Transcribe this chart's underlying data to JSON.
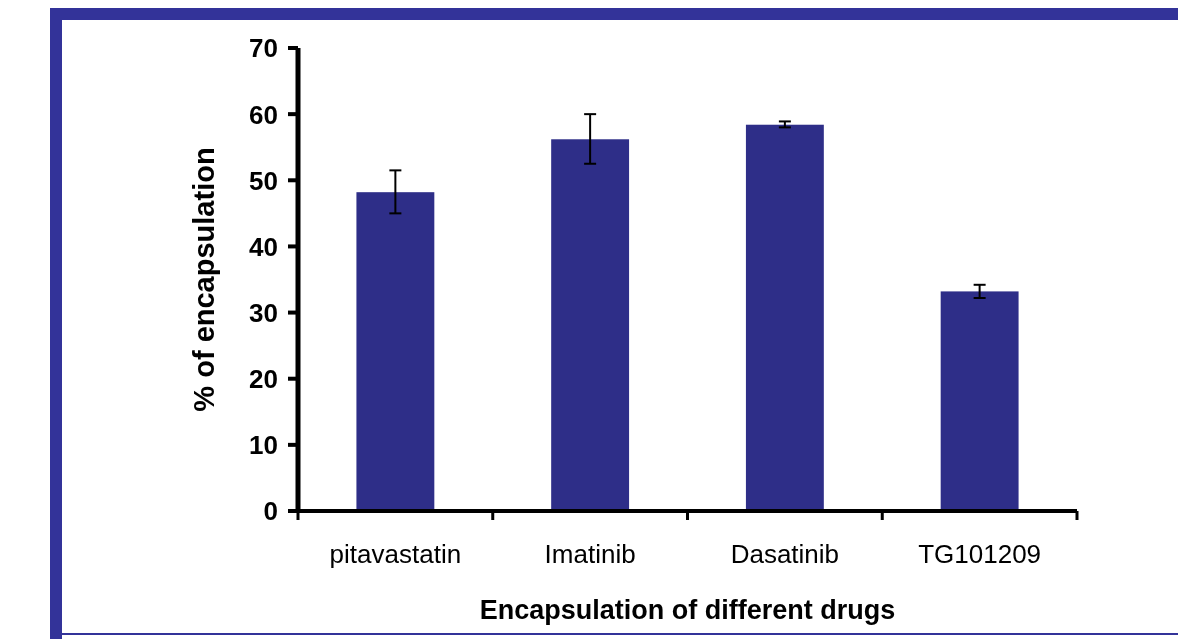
{
  "chart_data": {
    "type": "bar",
    "xlabel": "Encapsulation of different drugs",
    "ylabel": "% of encapsulation",
    "categories": [
      "pitavastatin",
      "Imatinib",
      "Dasatinib",
      "TG101209"
    ],
    "values": [
      48.2,
      56.2,
      58.4,
      33.2
    ],
    "errors": [
      [
        45.0,
        51.5
      ],
      [
        52.5,
        60.0
      ],
      [
        58.0,
        58.9
      ],
      [
        32.2,
        34.2
      ]
    ],
    "color": "#2e2e88",
    "ylim": [
      0,
      70
    ],
    "yticks": [
      0,
      10,
      20,
      30,
      40,
      50,
      60,
      70
    ],
    "grid": false
  }
}
